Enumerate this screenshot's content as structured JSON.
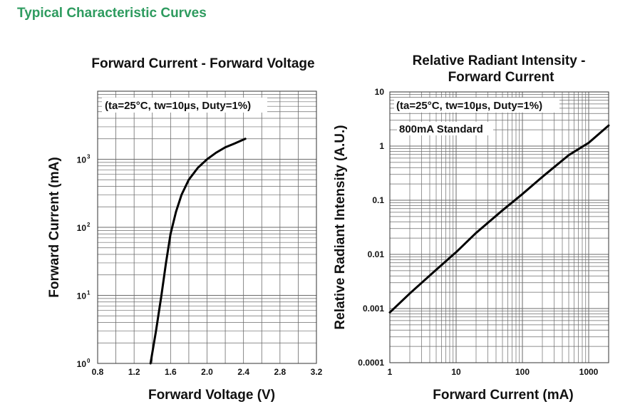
{
  "page": {
    "heading": "Typical Characteristic Curves"
  },
  "colors": {
    "heading": "#2e9b5f",
    "curve": "#000000",
    "grid": "#6b6b6b"
  },
  "chart_data": [
    {
      "type": "line",
      "title": "Forward Current - Forward Voltage",
      "xlabel": "Forward Voltage (V)",
      "ylabel": "Forward Current (mA)",
      "annotation": "(ta=25°C, tw=10µs, Duty=1%)",
      "x_scale": "linear",
      "y_scale": "log",
      "xlim": [
        0.8,
        3.2
      ],
      "ylim": [
        1,
        10000
      ],
      "x_ticks": [
        "0.8",
        "1.2",
        "1.6",
        "2.0",
        "2.4",
        "2.8",
        "3.2"
      ],
      "y_ticks": [
        {
          "base": "10",
          "exp": "0"
        },
        {
          "base": "10",
          "exp": "1"
        },
        {
          "base": "10",
          "exp": "2"
        },
        {
          "base": "10",
          "exp": "3"
        }
      ],
      "grid": true,
      "series": [
        {
          "x": [
            1.38,
            1.44,
            1.5,
            1.55,
            1.6,
            1.66,
            1.72,
            1.8,
            1.9,
            2.0,
            2.1,
            2.2,
            2.3,
            2.42
          ],
          "y": [
            1,
            3,
            10,
            30,
            80,
            170,
            300,
            500,
            750,
            1000,
            1250,
            1500,
            1700,
            2000
          ]
        }
      ]
    },
    {
      "type": "line",
      "title": [
        "Relative Radiant Intensity -",
        "Forward Current"
      ],
      "xlabel": "Forward Current (mA)",
      "ylabel": "Relative Radiant Intensity (A.U.)",
      "annotation": "(ta=25°C, tw=10µs, Duty=1%)",
      "note": "800mA Standard",
      "x_scale": "log",
      "y_scale": "log",
      "xlim": [
        1,
        2000
      ],
      "ylim": [
        0.0001,
        10
      ],
      "x_ticks": [
        "1",
        "10",
        "100",
        "1000"
      ],
      "y_ticks": [
        "0.0001",
        "0.001",
        "0.01",
        "0.1",
        "1",
        "10"
      ],
      "grid": true,
      "series": [
        {
          "x": [
            1,
            2,
            5,
            10,
            20,
            50,
            100,
            200,
            500,
            1000,
            2000
          ],
          "y": [
            0.00085,
            0.0019,
            0.0052,
            0.011,
            0.025,
            0.065,
            0.13,
            0.27,
            0.68,
            1.15,
            2.4
          ]
        }
      ]
    }
  ]
}
